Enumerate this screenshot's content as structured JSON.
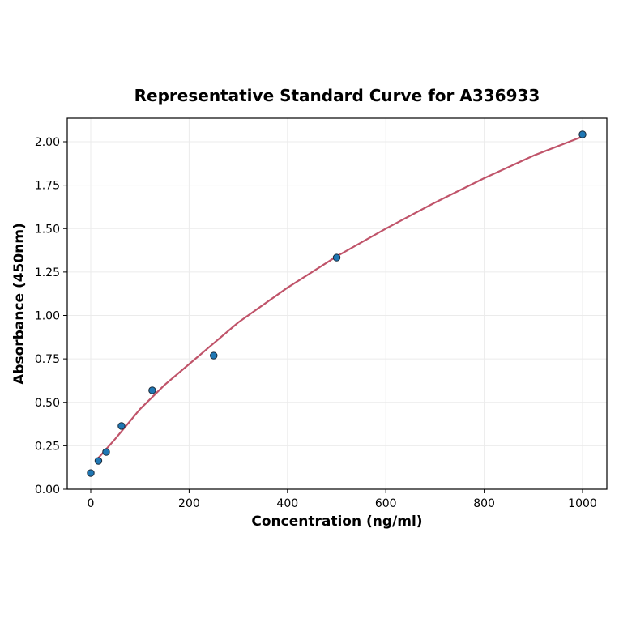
{
  "chart_data": {
    "type": "scatter",
    "title": "Representative Standard Curve for A336933",
    "xlabel": "Concentration (ng/ml)",
    "ylabel": "Absorbance (450nm)",
    "xlim": [
      -48,
      1050
    ],
    "ylim": [
      0,
      2.13
    ],
    "xticks": [
      0,
      200,
      400,
      600,
      800,
      1000
    ],
    "yticks": [
      "0.00",
      "0.25",
      "0.50",
      "0.75",
      "1.00",
      "1.25",
      "1.50",
      "1.75",
      "2.00"
    ],
    "grid": true,
    "points": {
      "x": [
        0,
        15.6,
        31.25,
        62.5,
        125,
        250,
        500,
        1000
      ],
      "y": [
        0.093,
        0.163,
        0.214,
        0.364,
        0.569,
        0.769,
        1.333,
        2.042
      ]
    },
    "fit_curve": {
      "x": [
        15.6,
        50,
        100,
        150,
        200,
        250,
        300,
        400,
        500,
        600,
        700,
        800,
        900,
        1000
      ],
      "y": [
        0.18,
        0.29,
        0.46,
        0.6,
        0.72,
        0.84,
        0.96,
        1.16,
        1.34,
        1.5,
        1.65,
        1.79,
        1.92,
        2.03
      ]
    },
    "colors": {
      "points": "#1f77b4",
      "curve": "#c0546a"
    }
  }
}
